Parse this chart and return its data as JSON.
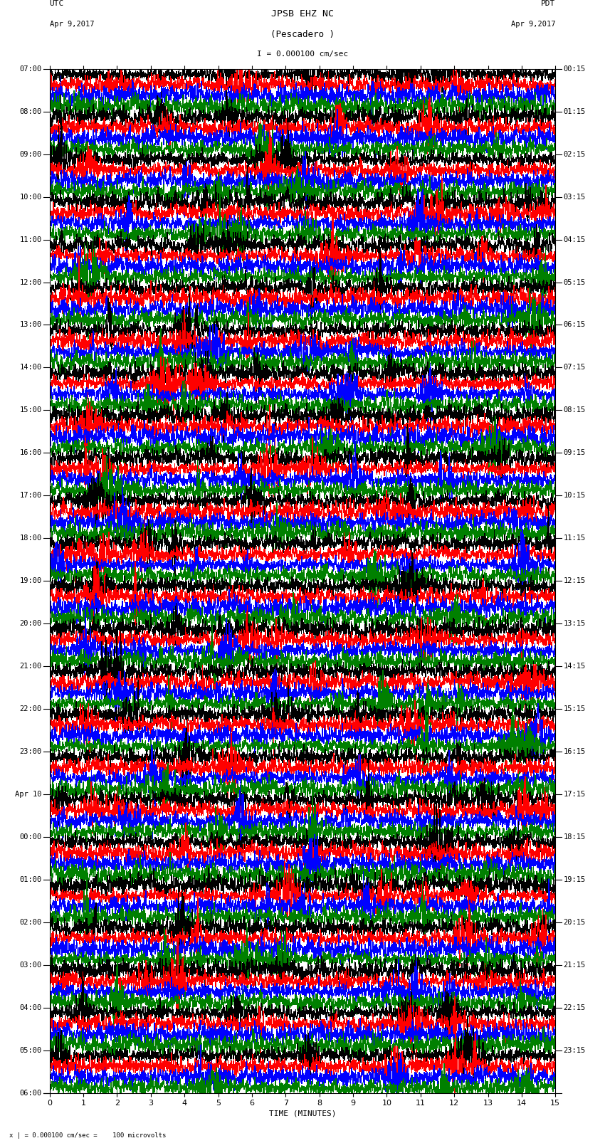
{
  "title_line1": "JPSB EHZ NC",
  "title_line2": "(Pescadero )",
  "scale_text": "I = 0.000100 cm/sec",
  "bottom_scale_text": "= 0.000100 cm/sec =    100 microvolts",
  "bottom_scale_prefix": "x |",
  "utc_label": "UTC",
  "utc_date": "Apr 9,2017",
  "pdt_label": "PDT",
  "pdt_date": "Apr 9,2017",
  "xlabel": "TIME (MINUTES)",
  "xlim": [
    0,
    15
  ],
  "xticks": [
    0,
    1,
    2,
    3,
    4,
    5,
    6,
    7,
    8,
    9,
    10,
    11,
    12,
    13,
    14,
    15
  ],
  "bg_color": "#ffffff",
  "trace_colors": [
    "black",
    "red",
    "blue",
    "green"
  ],
  "num_hours": 24,
  "traces_per_hour": 4,
  "left_labels": [
    "07:00",
    "08:00",
    "09:00",
    "10:00",
    "11:00",
    "12:00",
    "13:00",
    "14:00",
    "15:00",
    "16:00",
    "17:00",
    "18:00",
    "19:00",
    "20:00",
    "21:00",
    "22:00",
    "23:00",
    "Apr 10",
    "00:00",
    "01:00",
    "02:00",
    "03:00",
    "04:00",
    "05:00",
    "06:00"
  ],
  "right_labels": [
    "00:15",
    "01:15",
    "02:15",
    "03:15",
    "04:15",
    "05:15",
    "06:15",
    "07:15",
    "08:15",
    "09:15",
    "10:15",
    "11:15",
    "12:15",
    "13:15",
    "14:15",
    "15:15",
    "16:15",
    "17:15",
    "18:15",
    "19:15",
    "20:15",
    "21:15",
    "22:15",
    "23:15"
  ],
  "font_family": "monospace",
  "label_fontsize": 7.5,
  "title_fontsize": 9,
  "xlabel_fontsize": 8
}
